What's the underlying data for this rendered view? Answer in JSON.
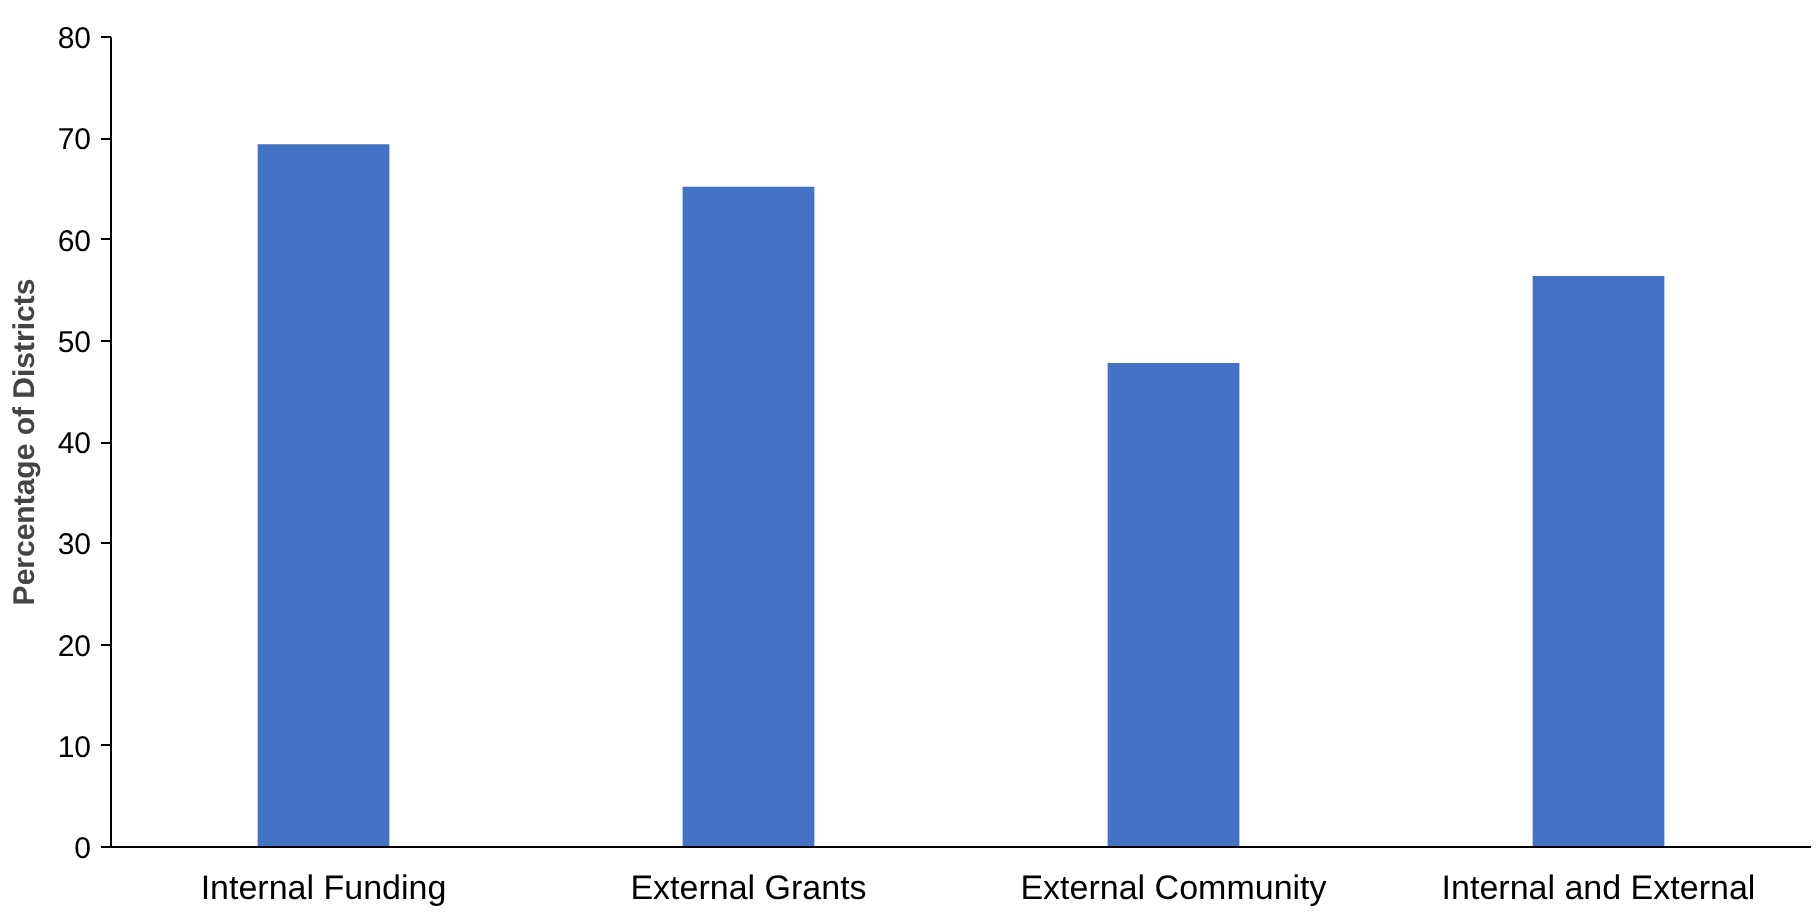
{
  "chart_data": {
    "type": "bar",
    "ylabel": "Percentage of Districts",
    "categories": [
      "Internal Funding",
      "External Grants",
      "External Community",
      "Internal and External"
    ],
    "values": [
      69.4,
      65.2,
      47.8,
      56.4
    ],
    "color": "#4472c4",
    "ylim": [
      0,
      80
    ],
    "yticks": [
      0,
      10,
      20,
      30,
      40,
      50,
      60,
      70,
      80
    ],
    "grid": false
  }
}
